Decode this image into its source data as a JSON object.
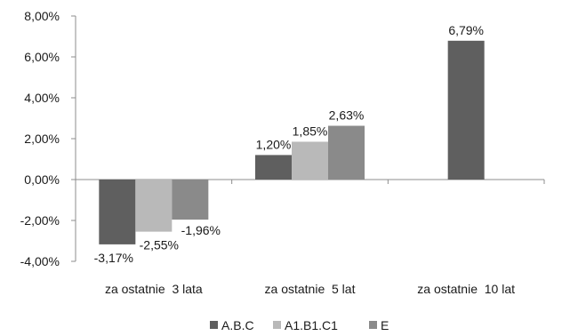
{
  "chart_data": {
    "type": "bar",
    "categories": [
      "za ostatnie  3 lata",
      "za ostatnie  5 lat",
      "za ostatnie  10 lat"
    ],
    "series": [
      {
        "name": "A.B.C",
        "values": [
          -3.17,
          1.2,
          6.79
        ],
        "labels": [
          "-3,17%",
          "1,20%",
          "6,79%"
        ],
        "color": "#5f5f5f"
      },
      {
        "name": "A1.B1.C1",
        "values": [
          -2.55,
          1.85,
          null
        ],
        "labels": [
          "-2,55%",
          "1,85%",
          null
        ],
        "color": "#b9b9b9"
      },
      {
        "name": "E",
        "values": [
          -1.96,
          2.63,
          null
        ],
        "labels": [
          "-1,96%",
          "2,63%",
          null
        ],
        "color": "#8a8a8a"
      }
    ],
    "ylim": [
      -4,
      8
    ],
    "yticks": [
      {
        "value": 8,
        "label": "8,00%"
      },
      {
        "value": 6,
        "label": "6,00%"
      },
      {
        "value": 4,
        "label": "4,00%"
      },
      {
        "value": 2,
        "label": "2,00%"
      },
      {
        "value": 0,
        "label": "0,00%"
      },
      {
        "value": -2,
        "label": "-2,00%"
      },
      {
        "value": -4,
        "label": "-4,00%"
      }
    ],
    "grid": false,
    "legend_position": "bottom"
  }
}
